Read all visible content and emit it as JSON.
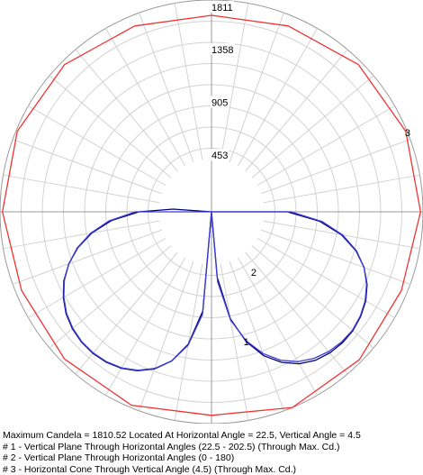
{
  "chart_data": {
    "type": "polar",
    "rings": [
      453,
      905,
      1358,
      1811
    ],
    "max_value": 1811,
    "grid": true,
    "series": [
      {
        "id": "1",
        "color": "#00006b",
        "points": [
          [
            0,
            0
          ],
          [
            5,
            560
          ],
          [
            10,
            930
          ],
          [
            15,
            1150
          ],
          [
            20,
            1310
          ],
          [
            25,
            1420
          ],
          [
            30,
            1500
          ],
          [
            35,
            1550
          ],
          [
            40,
            1575
          ],
          [
            45,
            1585
          ],
          [
            50,
            1580
          ],
          [
            55,
            1560
          ],
          [
            60,
            1525
          ],
          [
            65,
            1470
          ],
          [
            70,
            1390
          ],
          [
            75,
            1280
          ],
          [
            80,
            1130
          ],
          [
            85,
            930
          ],
          [
            90,
            650
          ],
          [
            95,
            0
          ],
          [
            180,
            0
          ],
          [
            262,
            0
          ],
          [
            266,
            330
          ],
          [
            270,
            620
          ],
          [
            275,
            860
          ],
          [
            280,
            1040
          ],
          [
            285,
            1185
          ],
          [
            290,
            1300
          ],
          [
            295,
            1395
          ],
          [
            300,
            1465
          ],
          [
            305,
            1520
          ],
          [
            310,
            1555
          ],
          [
            315,
            1575
          ],
          [
            320,
            1580
          ],
          [
            325,
            1570
          ],
          [
            330,
            1545
          ],
          [
            335,
            1500
          ],
          [
            340,
            1430
          ],
          [
            345,
            1320
          ],
          [
            350,
            1150
          ],
          [
            355,
            850
          ],
          [
            360,
            0
          ]
        ],
        "label_angle": 15,
        "label_value": 1150
      },
      {
        "id": "2",
        "color": "#3b3bd6",
        "points": [
          [
            0,
            0
          ],
          [
            5,
            600
          ],
          [
            10,
            940
          ],
          [
            15,
            1140
          ],
          [
            20,
            1290
          ],
          [
            25,
            1400
          ],
          [
            30,
            1480
          ],
          [
            35,
            1530
          ],
          [
            40,
            1560
          ],
          [
            45,
            1575
          ],
          [
            50,
            1575
          ],
          [
            55,
            1555
          ],
          [
            60,
            1520
          ],
          [
            65,
            1465
          ],
          [
            70,
            1390
          ],
          [
            75,
            1285
          ],
          [
            80,
            1140
          ],
          [
            85,
            950
          ],
          [
            90,
            680
          ],
          [
            94,
            0
          ],
          [
            180,
            0
          ],
          [
            266,
            0
          ],
          [
            270,
            650
          ],
          [
            275,
            880
          ],
          [
            280,
            1050
          ],
          [
            285,
            1190
          ],
          [
            290,
            1300
          ],
          [
            295,
            1390
          ],
          [
            300,
            1460
          ],
          [
            305,
            1515
          ],
          [
            310,
            1550
          ],
          [
            315,
            1570
          ],
          [
            320,
            1575
          ],
          [
            325,
            1565
          ],
          [
            330,
            1540
          ],
          [
            335,
            1495
          ],
          [
            340,
            1425
          ],
          [
            345,
            1320
          ],
          [
            350,
            1160
          ],
          [
            355,
            880
          ],
          [
            360,
            0
          ]
        ],
        "label_angle": 35,
        "label_value": 630
      },
      {
        "id": "3",
        "color": "#ee3333",
        "points": [
          [
            0,
            1740
          ],
          [
            22.5,
            1811
          ],
          [
            45,
            1790
          ],
          [
            67.5,
            1760
          ],
          [
            90,
            1790
          ],
          [
            112.5,
            1800
          ],
          [
            135,
            1780
          ],
          [
            157.5,
            1720
          ],
          [
            180,
            1680
          ],
          [
            202.5,
            1720
          ],
          [
            225,
            1780
          ],
          [
            247.5,
            1800
          ],
          [
            270,
            1790
          ],
          [
            292.5,
            1760
          ],
          [
            315,
            1780
          ],
          [
            337.5,
            1790
          ]
        ],
        "label_angle": 112,
        "label_value": 1811
      }
    ]
  },
  "legend": {
    "max_line": "Maximum Candela = 1810.52   Located At Horizontal Angle = 22.5, Vertical Angle = 4.5",
    "line1": "# 1 - Vertical Plane Through Horizontal Angles (22.5 - 202.5) (Through Max. Cd.)",
    "line2": "# 2 - Vertical Plane Through Horizontal Angles (0 - 180)",
    "line3": "# 3 - Horizontal Cone Through Vertical Angle (4.5) (Through Max. Cd.)"
  }
}
